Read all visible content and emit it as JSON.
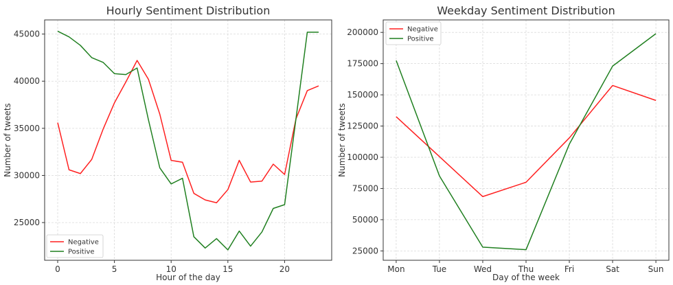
{
  "chart_data": [
    {
      "type": "line",
      "title": "Hourly Sentiment Distribution",
      "xlabel": "Hour of the day",
      "ylabel": "Number of tweets",
      "x": [
        0,
        1,
        2,
        3,
        4,
        5,
        6,
        7,
        8,
        9,
        10,
        11,
        12,
        13,
        14,
        15,
        16,
        17,
        18,
        19,
        20,
        21,
        22,
        23
      ],
      "xlim": [
        -1.15,
        24.15
      ],
      "ylim": [
        21000,
        46500
      ],
      "xticks": [
        0,
        5,
        10,
        15,
        20
      ],
      "xtick_labels": [
        "0",
        "5",
        "10",
        "15",
        "20"
      ],
      "yticks": [
        25000,
        30000,
        35000,
        40000,
        45000
      ],
      "ytick_labels": [
        "25000",
        "30000",
        "35000",
        "40000",
        "45000"
      ],
      "grid": true,
      "legend_position": "lower-left",
      "series": [
        {
          "name": "Negative",
          "color": "#ff1f1f",
          "values": [
            35600,
            30600,
            30200,
            31700,
            34900,
            37700,
            39900,
            42200,
            40200,
            36500,
            31600,
            31400,
            28100,
            27400,
            27100,
            28500,
            31600,
            29300,
            29400,
            31200,
            30100,
            36000,
            39000,
            39500
          ]
        },
        {
          "name": "Positive",
          "color": "#1f7f1f",
          "values": [
            45300,
            44700,
            43800,
            42500,
            42000,
            40800,
            40700,
            41400,
            35900,
            30800,
            29100,
            29700,
            23500,
            22300,
            23300,
            22100,
            24100,
            22500,
            24000,
            26500,
            26900,
            36000,
            45200,
            45200
          ]
        }
      ]
    },
    {
      "type": "line",
      "title": "Weekday Sentiment Distribution",
      "xlabel": "Day of the week",
      "ylabel": "Number of tweets",
      "categories": [
        "Mon",
        "Tue",
        "Wed",
        "Thu",
        "Fri",
        "Sat",
        "Sun"
      ],
      "xlim": [
        -0.3,
        6.3
      ],
      "ylim": [
        17500,
        210000
      ],
      "yticks": [
        25000,
        50000,
        75000,
        100000,
        125000,
        150000,
        175000,
        200000
      ],
      "ytick_labels": [
        "25000",
        "50000",
        "75000",
        "100000",
        "125000",
        "150000",
        "175000",
        "200000"
      ],
      "grid": true,
      "legend_position": "top-left",
      "series": [
        {
          "name": "Negative",
          "color": "#ff1f1f",
          "values": [
            132500,
            100500,
            68500,
            80000,
            115500,
            157500,
            145500
          ]
        },
        {
          "name": "Positive",
          "color": "#1f7f1f",
          "values": [
            177500,
            85000,
            28000,
            26000,
            110500,
            173000,
            199000
          ]
        }
      ]
    }
  ]
}
